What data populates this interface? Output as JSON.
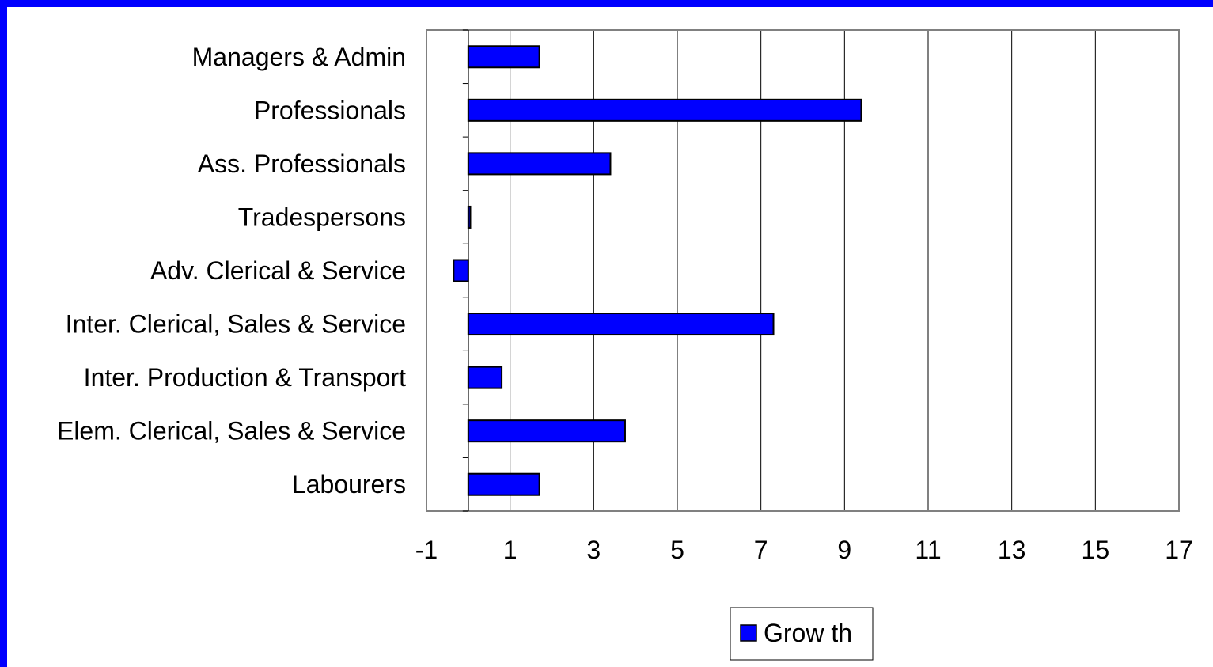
{
  "chart_data": {
    "type": "bar",
    "orientation": "horizontal",
    "categories": [
      "Managers & Admin",
      "Professionals",
      "Ass. Professionals",
      "Tradespersons",
      "Adv. Clerical & Service",
      "Inter. Clerical, Sales & Service",
      "Inter. Production & Transport",
      "Elem. Clerical, Sales & Service",
      "Labourers"
    ],
    "series": [
      {
        "name": "Grow th",
        "color": "#0000ff",
        "values": [
          1.7,
          9.4,
          3.4,
          0.05,
          -0.35,
          7.3,
          0.8,
          3.75,
          1.7
        ]
      }
    ],
    "xlim": [
      -1,
      17
    ],
    "xticks": [
      "-1",
      "1",
      "3",
      "5",
      "7",
      "9",
      "11",
      "13",
      "15",
      "17"
    ],
    "grid": true,
    "legend": "bottom-center",
    "title": "",
    "xlabel": "",
    "ylabel": ""
  },
  "colors": {
    "frame": "#0000ff",
    "background": "#ffffff",
    "bar": "#0000ff",
    "gridline": "#000000"
  }
}
